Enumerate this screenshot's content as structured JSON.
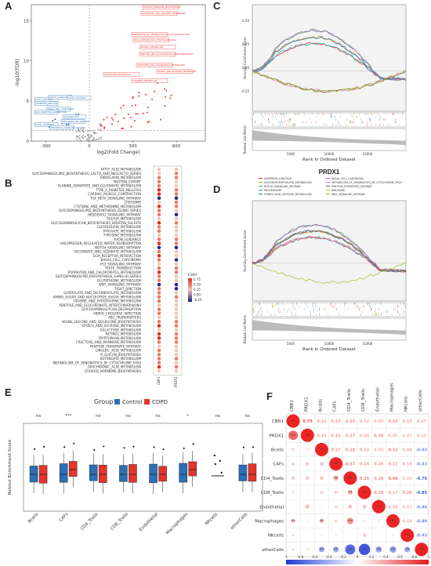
{
  "panels": {
    "A": "A",
    "B": "B",
    "C": "C",
    "D": "D",
    "E": "E",
    "F": "F"
  },
  "colors": {
    "red": "#e8332b",
    "blue": "#2b6fb8",
    "gray": "#9a9a9a",
    "dark": "#333333"
  },
  "chart_data": [
    {
      "id": "A",
      "type": "scatter",
      "xlabel": "log2(Fold Change)",
      "ylabel": "-log10(FDR)",
      "xticks": [
        "-300",
        "0",
        "300",
        "600"
      ],
      "yticks": [
        "0",
        "5",
        "10",
        "15"
      ],
      "xlim": [
        -400,
        800
      ],
      "ylim": [
        0,
        17
      ],
      "red_labels": [
        "STEROID_HORMONE_BIOSYNTHESIS",
        "ASCORBATE_AND_ALDARATE_METABOLISM",
        "METABOLISM_OF_XENOBIOTICS_BY_CYTOCHROME_P450",
        "DRUG_METABOLISM_CYTOCHROME_P450",
        "RETINOL_METABOLISM",
        "PENTOSE_AND_GLUCURONATE_INTERCONVERSIONS",
        "PORPHYRIN_AND_CHLOROPHYLL_METABOLISM",
        "STARCH_AND_SUCROSE_METABOLISM",
        "GALACTOSE_METABOLISM",
        "TYROSINE_METABOLISM"
      ],
      "blue_labels": [
        "TIGHT_JUNCTION",
        "ADHERENS_JUNCTION",
        "NOTCH_SIGNALING_PATHWAY",
        "AXON_GUIDANCE",
        "BASAL_CELL_CARCINOMA",
        "ECM_RECEPTOR_INTERACTION",
        "WNT_SIGNALING_PATHWAY",
        "FOCAL_ADHESION",
        "HEDGEHOG_SIGNALING_PATHWAY",
        "GAP_JUNCTION"
      ]
    },
    {
      "id": "B",
      "type": "heatmap",
      "columns": [
        "CBR1",
        "PRDX1"
      ],
      "legend_title": "Corr",
      "legend_ticks": [
        "0.75",
        "0.50",
        "0.25",
        "0.00",
        "-0.25"
      ],
      "rows": [
        "FATTY_ACID_METABOLISM",
        "GLYCOSPHINGOLIPID_BIOSYNTHESIS_LACTO_AND_NEOLACTO_SERIES",
        "RIBOFLAVIN_METABOLISM",
        "PROTEIN_EXPORT",
        "ALANINE_ASPARTATE_AND_GLUTAMATE_METABOLISM",
        "TYPE_II_DIABETES_MELLITUS",
        "CARDIAC_MUSCLE_CONTRACTION",
        "TGF_BETA_SIGNALING_PATHWAY",
        "LYSOSOME",
        "CYSTEINE_AND_METHIONINE_METABOLISM",
        "GLYCOSPHINGOLIPID_BIOSYNTHESIS_GLOBO_SERIES",
        "HEDGEHOG_SIGNALING_PATHWAY",
        "SULFUR_METABOLISM",
        "GLYCOSAMINOGLYCAN_BIOSYNTHESIS_KERATAN_SULFATE",
        "GLYCEROLIPID_METABOLISM",
        "PYRUVATE_METABOLISM",
        "TYROSINE_METABOLISM",
        "AXON_GUIDANCE",
        "VASOPRESSIN_REGULATED_WATER_REABSORPTION",
        "NOTCH_SIGNALING_PATHWAY",
        "ASCORBATE_AND_ALDARATE_METABOLISM",
        "ECM_RECEPTOR_INTERACTION",
        "BASAL_CELL_CARCINOMA",
        "P53_SIGNALING_PATHWAY",
        "TASTE_TRANSDUCTION",
        "PORPHYRIN_AND_CHLOROPHYLL_METABOLISM",
        "GLYCOSPHINGOLIPID_BIOSYNTHESIS_GANGLIO_SERIES",
        "GLUTATHIONE_METABOLISM",
        "WNT_SIGNALING_PATHWAY",
        "TIGHT_JUNCTION",
        "GLYOXYLATE_AND_DICARBOXYLATE_METABOLISM",
        "AMINO_SUGAR_AND_NUCLEOTIDE_SUGAR_METABOLISM",
        "TAURINE_AND_HYPOTAURINE_METABOLISM",
        "PENTOSE_AND_GLUCURONATE_INTERCONVERSIONS",
        "GLYCOSAMINOGLYCAN_DEGRADATION",
        "VIBRIO_CHOLERAE_INFECTION",
        "ABC_TRANSPORTERS",
        "VALINE_LEUCINE_AND_ISOLEUCINE_BIOSYNTHESIS",
        "STARCH_AND_SUCROSE_METABOLISM",
        "GALACTOSE_METABOLISM",
        "RETINOL_METABOLISM",
        "TRYPTOPHAN_METABOLISM",
        "FRUCTOSE_AND_MANNOSE_METABOLISM",
        "PENTOSE_PHOSPHATE_PATHWAY",
        "LINOLEIC_ACID_METABOLISM",
        "O_GLYCAN_BIOSYNTHESIS",
        "BUTANOATE_METABOLISM",
        "METABOLISM_OF_XENOBIOTICS_BY_CYTOCHROME_P450",
        "ARACHIDONIC_ACID_METABOLISM",
        "STEROID_HORMONE_BIOSYNTHESIS"
      ]
    },
    {
      "id": "C",
      "type": "line",
      "ylabel": "Running Enrichment Score",
      "ylabel2": "Ranked List Metric",
      "xlabel": "Rank in Ordered Dataset",
      "xticks": [
        "5000",
        "10000",
        "15000"
      ],
      "yticks": [
        "0.50",
        "0.25",
        "0.00",
        "-0.25"
      ]
    },
    {
      "id": "D",
      "type": "line",
      "title": "PRDX1",
      "ylabel": "Running Enrichment Score",
      "ylabel2": "Ranked List Metric",
      "xlabel": "Rank in Ordered Dataset",
      "xticks": [
        "5000",
        "10000",
        "15000"
      ],
      "legend": [
        "ADHERENS_JUNCTION",
        "GLYCEROPHOSPHOLIPID_METABOLISM",
        "NOTCH_SIGNALING_PATHWAY",
        "PROTEASOME",
        "STARCH_AND_SUCROSE_METABOLISM",
        "BASAL_CELL_CARCINOMA",
        "METABOLISM_OF_XENOBIOTICS_BY_CYTOCHROME_P450",
        "PENTOSE_PHOSPHATE_PATHWAY",
        "RIBOSOME",
        "WNT_SIGNALING_PATHWAY"
      ]
    },
    {
      "id": "E",
      "type": "box",
      "legend_title": "Group",
      "legend": [
        "Control",
        "COPD"
      ],
      "ylabel": "Releive Enrichment Score",
      "categories": [
        "Bcells",
        "CAFs",
        "CD4_Tcells",
        "CD8_Tcells",
        "Endothelial",
        "Macrophages",
        "NKcells",
        "otherCells"
      ],
      "significance": [
        "ns",
        "***",
        "ns",
        "ns",
        "ns",
        "*",
        "ns",
        "ns"
      ]
    },
    {
      "id": "F",
      "type": "heatmap",
      "labels": [
        "CBR1",
        "PRDX1",
        "Bcells",
        "CAFs",
        "CD4_Tcells",
        "CD8_Tcells",
        "Endothelial",
        "Macrophages",
        "NKcells",
        "otherCells"
      ],
      "colorbar_ticks": [
        "-1",
        "-0.8",
        "-0.6",
        "-0.4",
        "-0.2",
        "0",
        "0.2",
        "0.4",
        "0.6",
        "0.8",
        "1"
      ],
      "upper_values": [
        [
          "",
          "0.70",
          "0.22",
          "0.23",
          "0.25",
          "0.12",
          "0.05",
          "0.32",
          "0.15",
          "0.17"
        ],
        [
          "",
          "",
          "0.15",
          "0.25",
          "0.27",
          "0.09",
          "0.30",
          "0.05",
          "0.02",
          "0.13"
        ],
        [
          "",
          "",
          "",
          "0.27",
          "0.28",
          "0.22",
          "0.05",
          "0.33",
          "0.08",
          "-0.43"
        ],
        [
          "",
          "",
          "",
          "",
          "0.37",
          "0.24",
          "0.20",
          "0.22",
          "0.10",
          "-0.43"
        ],
        [
          "",
          "",
          "",
          "",
          "",
          "0.35",
          "0.28",
          "0.49",
          "0.03",
          "-0.76"
        ],
        [
          "",
          "",
          "",
          "",
          "",
          "",
          "0.28",
          "0.17",
          "0.26",
          "-0.85"
        ],
        [
          "",
          "",
          "",
          "",
          "",
          "",
          "",
          "0.08",
          "0.03",
          "-0.46"
        ],
        [
          "",
          "",
          "",
          "",
          "",
          "",
          "",
          "",
          "0.10",
          "-0.49"
        ],
        [
          "",
          "",
          "",
          "",
          "",
          "",
          "",
          "",
          "",
          "-0.43"
        ],
        [
          "",
          "",
          "",
          "",
          "",
          "",
          "",
          "",
          "",
          ""
        ]
      ]
    }
  ]
}
